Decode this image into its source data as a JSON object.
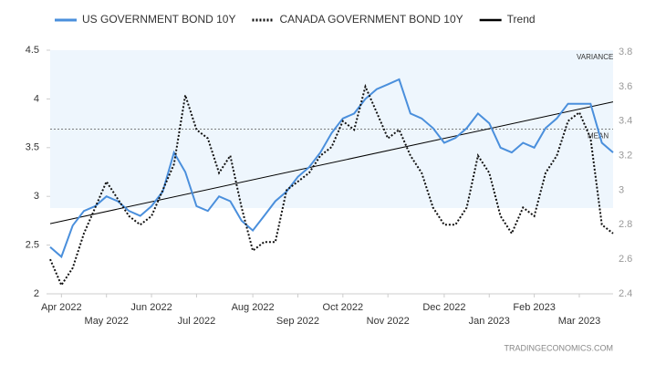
{
  "chart_data": {
    "type": "line",
    "categories": [
      null,
      "Apr 2022",
      null,
      null,
      null,
      "May 2022",
      null,
      null,
      null,
      "Jun 2022",
      null,
      null,
      null,
      "Jul 2022",
      null,
      null,
      null,
      null,
      "Aug 2022",
      null,
      null,
      null,
      "Sep 2022",
      null,
      null,
      null,
      "Oct 2022",
      null,
      null,
      null,
      "Nov 2022",
      null,
      null,
      null,
      null,
      "Dec 2022",
      null,
      null,
      null,
      "Jan 2023",
      null,
      null,
      null,
      "Feb 2023",
      null,
      null,
      null,
      "Mar 2023",
      null,
      null,
      null
    ],
    "series": [
      {
        "name": "US GOVERNMENT BOND 10Y",
        "color": "#4a8fdc",
        "style": "solid",
        "axis": "y",
        "values": [
          2.48,
          2.38,
          2.7,
          2.85,
          2.9,
          3.0,
          2.95,
          2.85,
          2.8,
          2.9,
          3.05,
          3.45,
          3.25,
          2.9,
          2.85,
          3.0,
          2.95,
          2.75,
          2.65,
          2.8,
          2.95,
          3.05,
          3.2,
          3.3,
          3.45,
          3.65,
          3.8,
          3.85,
          4.0,
          4.1,
          4.15,
          4.2,
          3.85,
          3.8,
          3.7,
          3.55,
          3.6,
          3.7,
          3.85,
          3.75,
          3.5,
          3.45,
          3.55,
          3.5,
          3.7,
          3.8,
          3.95,
          3.95,
          3.95,
          3.55,
          3.45
        ]
      },
      {
        "name": "CANADA GOVERNMENT BOND 10Y",
        "color": "#111111",
        "style": "dotted",
        "axis": "y2",
        "values": [
          2.6,
          2.45,
          2.55,
          2.75,
          2.9,
          3.05,
          2.95,
          2.85,
          2.8,
          2.85,
          3.0,
          3.15,
          3.55,
          3.35,
          3.3,
          3.1,
          3.2,
          2.9,
          2.65,
          2.7,
          2.7,
          3.0,
          3.05,
          3.1,
          3.2,
          3.25,
          3.4,
          3.35,
          3.6,
          3.45,
          3.3,
          3.35,
          3.2,
          3.1,
          2.9,
          2.8,
          2.8,
          2.9,
          3.2,
          3.1,
          2.85,
          2.75,
          2.9,
          2.85,
          3.1,
          3.2,
          3.4,
          3.45,
          3.3,
          2.8,
          2.75
        ]
      }
    ],
    "trend": {
      "name": "Trend",
      "color": "#000000",
      "start": 2.72,
      "end": 3.97
    },
    "variance": {
      "label": "VARIANCE",
      "range": [
        2.88,
        4.5
      ]
    },
    "mean": {
      "label": "MEAN",
      "value": 3.69
    },
    "ylim": [
      2,
      4.5
    ],
    "yticks": [
      2,
      2.5,
      3,
      3.5,
      4,
      4.5
    ],
    "y2lim": [
      2.4,
      3.8
    ],
    "y2ticks": [
      2.4,
      2.6,
      2.8,
      3,
      3.2,
      3.4,
      3.6,
      3.8
    ],
    "source": "TRADINGECONOMICS.COM"
  }
}
